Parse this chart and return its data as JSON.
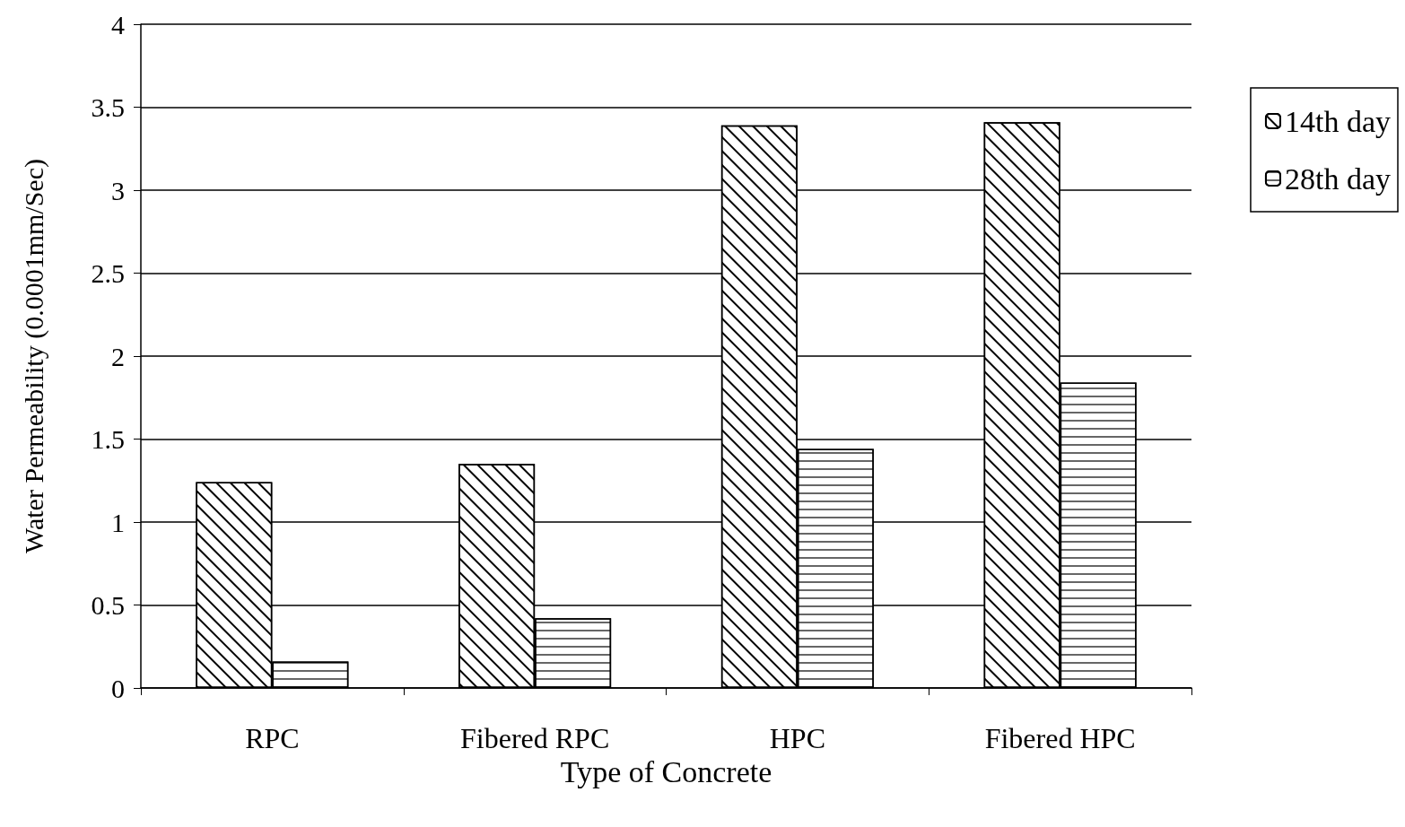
{
  "chart_data": {
    "type": "bar",
    "xlabel": "Type of Concrete",
    "ylabel": "Water Permeability (0.0001mm/Sec)",
    "categories": [
      "RPC",
      "Fibered RPC",
      "HPC",
      "Fibered HPC"
    ],
    "series": [
      {
        "name": "14th day",
        "color": "#ffffff",
        "values": [
          1.24,
          1.35,
          3.39,
          3.41
        ]
      },
      {
        "name": "28th day",
        "color": "#ffffff",
        "values": [
          0.16,
          0.42,
          1.44,
          1.84
        ]
      }
    ],
    "ylim": [
      0,
      4
    ],
    "yticks": [
      0,
      0.5,
      1,
      1.5,
      2,
      2.5,
      3,
      3.5,
      4
    ],
    "grid": "y",
    "legend": "top right"
  }
}
